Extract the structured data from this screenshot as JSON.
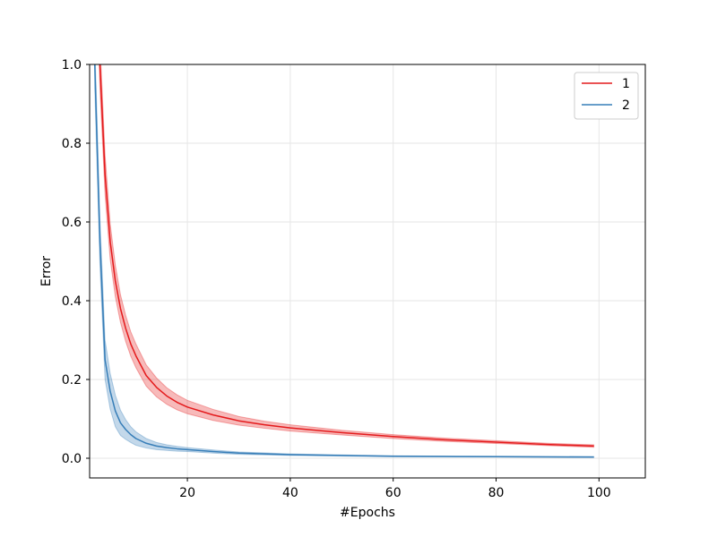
{
  "chart_data": {
    "type": "line",
    "title": "",
    "xlabel": "#Epochs",
    "ylabel": "Error",
    "xlim": [
      1,
      109
    ],
    "ylim": [
      -0.05,
      1.0
    ],
    "x_ticks": [
      20,
      40,
      60,
      80,
      100
    ],
    "y_ticks": [
      0.0,
      0.2,
      0.4,
      0.6,
      0.8,
      1.0
    ],
    "x_tick_labels": [
      "20",
      "40",
      "60",
      "80",
      "100"
    ],
    "y_tick_labels": [
      "0.0",
      "0.2",
      "0.4",
      "0.6",
      "0.8",
      "1.0"
    ],
    "grid": true,
    "legend_position": "top-right",
    "x": [
      2,
      3,
      4,
      5,
      6,
      7,
      8,
      9,
      10,
      12,
      14,
      16,
      18,
      20,
      25,
      30,
      35,
      40,
      50,
      60,
      70,
      80,
      90,
      99
    ],
    "series": [
      {
        "name": "1",
        "color": "#e41a1c",
        "values": [
          1.45,
          1.0,
          0.72,
          0.55,
          0.45,
          0.38,
          0.33,
          0.29,
          0.26,
          0.21,
          0.18,
          0.158,
          0.142,
          0.13,
          0.11,
          0.095,
          0.085,
          0.077,
          0.065,
          0.055,
          0.047,
          0.041,
          0.035,
          0.031
        ],
        "band": [
          0.08,
          0.06,
          0.05,
          0.045,
          0.04,
          0.035,
          0.033,
          0.031,
          0.03,
          0.027,
          0.024,
          0.021,
          0.019,
          0.017,
          0.014,
          0.011,
          0.009,
          0.008,
          0.006,
          0.005,
          0.004,
          0.0035,
          0.003,
          0.003
        ]
      },
      {
        "name": "2",
        "color": "#377eb8",
        "values": [
          1.0,
          0.55,
          0.25,
          0.17,
          0.12,
          0.09,
          0.073,
          0.06,
          0.05,
          0.038,
          0.031,
          0.027,
          0.024,
          0.022,
          0.017,
          0.013,
          0.011,
          0.009,
          0.007,
          0.005,
          0.0045,
          0.004,
          0.0035,
          0.003
        ],
        "band": [
          0.06,
          0.06,
          0.05,
          0.045,
          0.04,
          0.032,
          0.025,
          0.02,
          0.017,
          0.012,
          0.009,
          0.007,
          0.006,
          0.005,
          0.004,
          0.003,
          0.0025,
          0.002,
          0.0015,
          0.0012,
          0.001,
          0.001,
          0.001,
          0.001
        ]
      }
    ]
  }
}
